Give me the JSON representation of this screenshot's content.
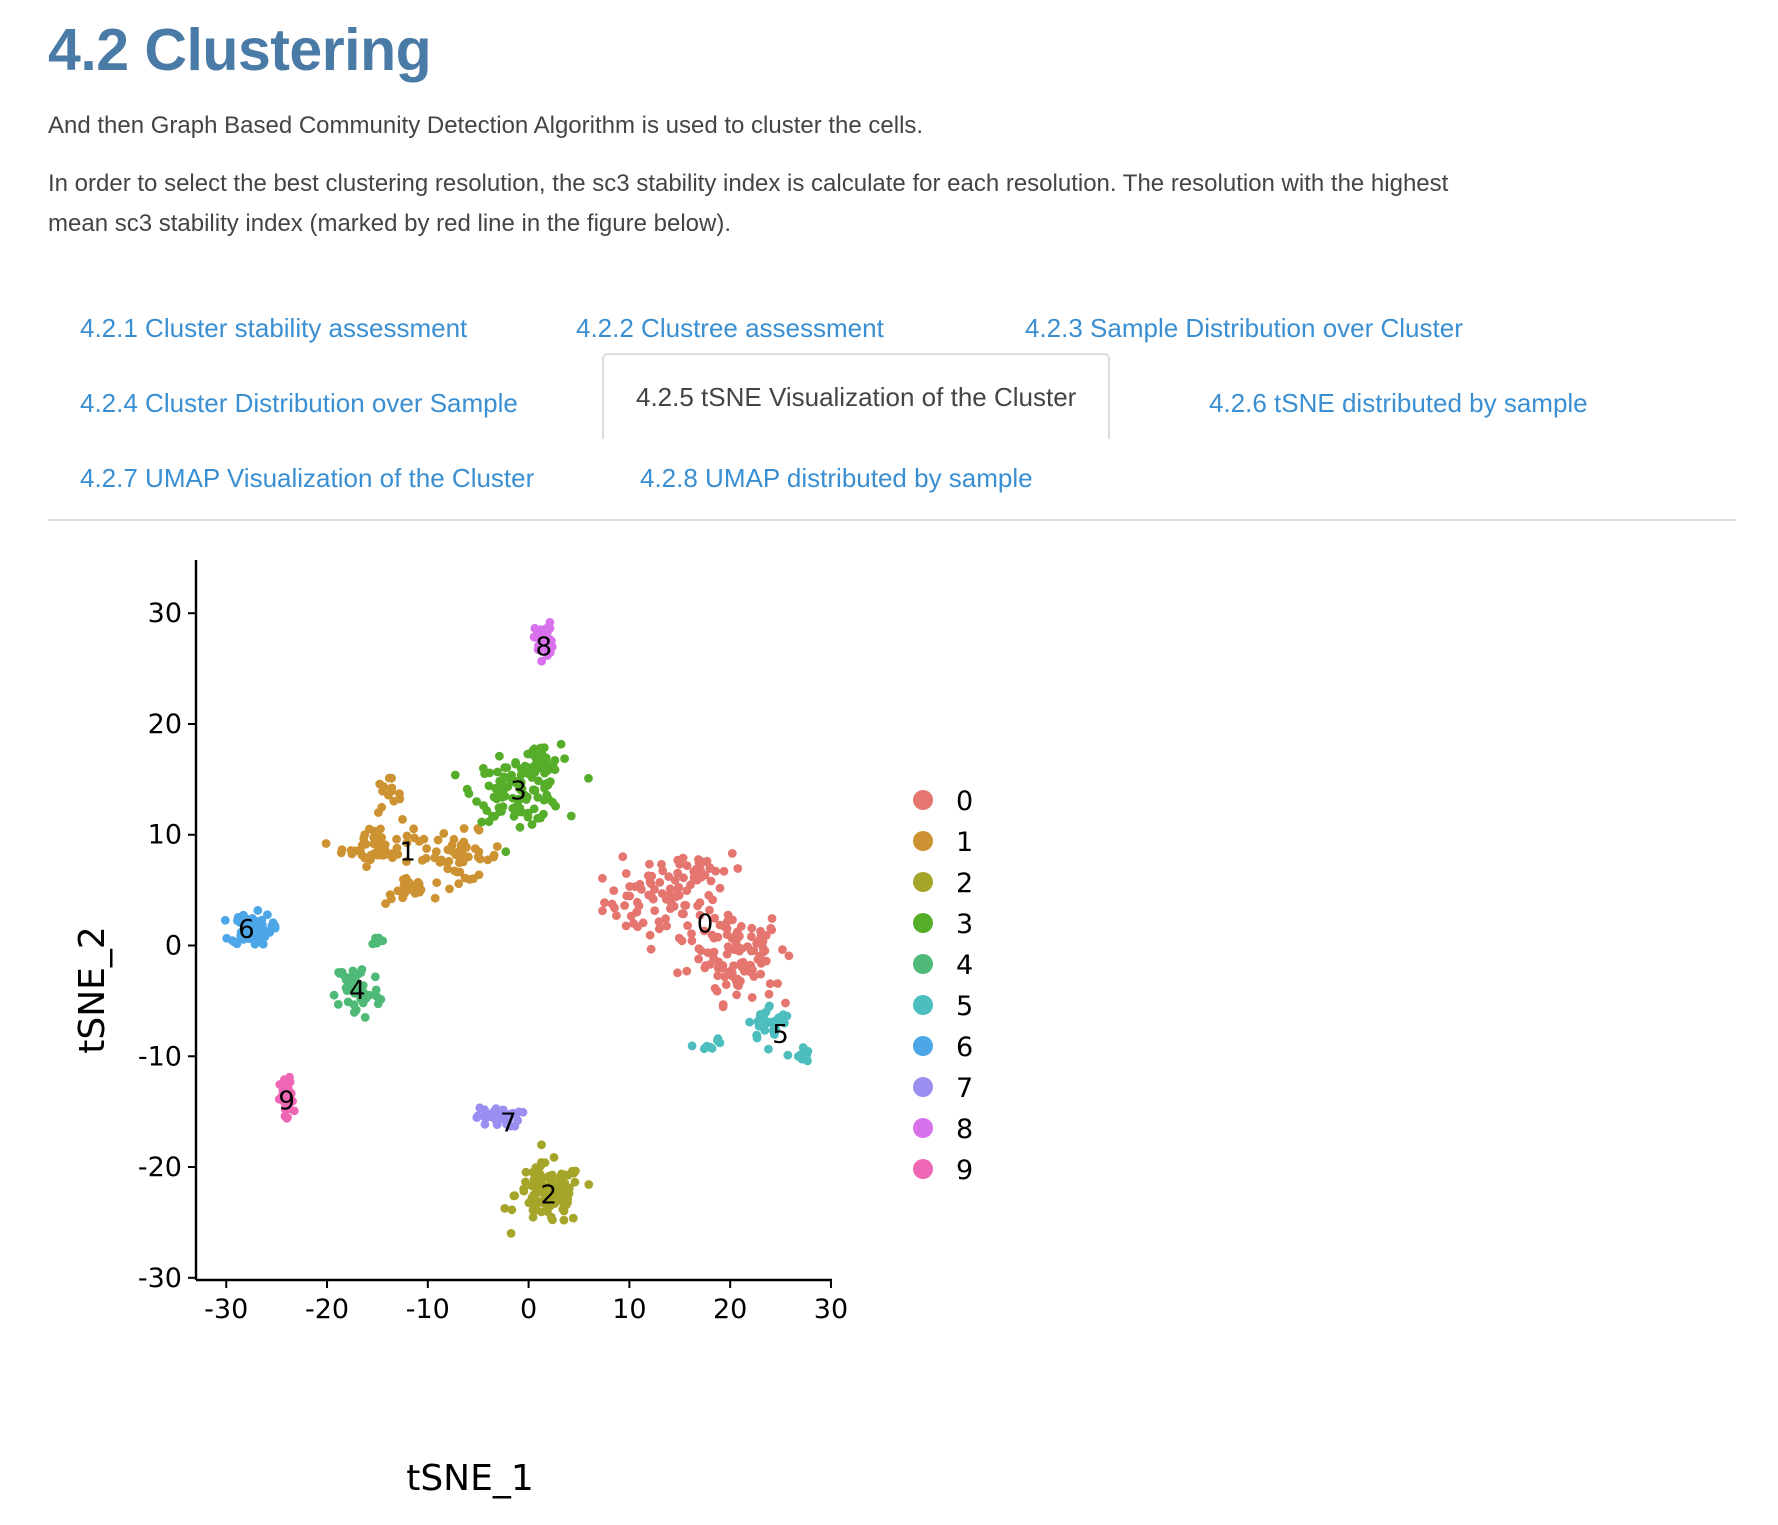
{
  "section": {
    "title": "4.2 Clustering",
    "para1": "And then Graph Based Community Detection Algorithm is used to cluster the cells.",
    "para2a": "In order to select the best clustering resolution, the sc3 stability index is calculate for each resolution. The resolution with the highest",
    "para2b": "mean sc3 stability index (marked by red line in the figure below)."
  },
  "tabs": [
    {
      "label": "4.2.1 Cluster stability assessment"
    },
    {
      "label": "4.2.2 Clustree assessment"
    },
    {
      "label": "4.2.3 Sample Distribution over Cluster"
    },
    {
      "label": "4.2.4 Cluster Distribution over Sample"
    },
    {
      "label": "4.2.5 tSNE Visualization of the Cluster",
      "active": true
    },
    {
      "label": "4.2.6 tSNE distributed by sample"
    },
    {
      "label": "4.2.7 UMAP Visualization of the Cluster"
    },
    {
      "label": "4.2.8 UMAP distributed by sample"
    }
  ],
  "colors": {
    "link": "#3a8fd2",
    "title": "#4a7aa6",
    "cluster_0": "#e5756f",
    "cluster_1": "#cd9231",
    "cluster_2": "#a5a52a",
    "cluster_3": "#56ad2a",
    "cluster_4": "#4fb978",
    "cluster_5": "#4dbebd",
    "cluster_6": "#4da6e8",
    "cluster_7": "#9a8ff0",
    "cluster_8": "#d872ec",
    "cluster_9": "#ee67b5"
  },
  "chart_data": {
    "type": "scatter",
    "xlabel": "tSNE_1",
    "ylabel": "tSNE_2",
    "xlim": [
      -33,
      30.5
    ],
    "ylim": [
      -30.2,
      33
    ],
    "xticks": [
      -30,
      -20,
      -10,
      0,
      10,
      20,
      30
    ],
    "yticks": [
      -30,
      -20,
      -10,
      0,
      10,
      20,
      30
    ],
    "xtick_labels": [
      "-30",
      "-20",
      "-10",
      "0",
      "10",
      "20",
      "30"
    ],
    "ytick_labels": [
      "-30",
      "-20",
      "-10",
      "0",
      "10",
      "20",
      "30"
    ],
    "grid": false,
    "legend_position": "right",
    "legend": [
      "0",
      "1",
      "2",
      "3",
      "4",
      "5",
      "6",
      "7",
      "8",
      "9"
    ],
    "clusters": [
      {
        "name": "0",
        "label_x": 17.5,
        "label_y": 2,
        "centers": [
          [
            13,
            4,
            5,
            3,
            70
          ],
          [
            20,
            0,
            5,
            3,
            80
          ],
          [
            17,
            7,
            4,
            1.6,
            30
          ],
          [
            21,
            -3,
            3,
            2,
            30
          ]
        ]
      },
      {
        "name": "1",
        "label_x": -12,
        "label_y": 8.5,
        "centers": [
          [
            -15,
            9,
            3.2,
            1.6,
            50
          ],
          [
            -7,
            8,
            4,
            2,
            50
          ],
          [
            -14,
            13.5,
            1.2,
            1.5,
            15
          ],
          [
            -12,
            5,
            2,
            1.2,
            20
          ]
        ]
      },
      {
        "name": "2",
        "label_x": 2,
        "label_y": -22.5,
        "centers": [
          [
            2,
            -22.5,
            3,
            2.5,
            110
          ]
        ]
      },
      {
        "name": "3",
        "label_x": -1,
        "label_y": 14,
        "centers": [
          [
            -1,
            14,
            4,
            2.5,
            110
          ],
          [
            1,
            16.5,
            2,
            1.5,
            30
          ]
        ]
      },
      {
        "name": "4",
        "label_x": -17,
        "label_y": -4,
        "centers": [
          [
            -17,
            -4,
            2,
            2.5,
            50
          ],
          [
            -15,
            0.5,
            0.6,
            0.4,
            6
          ]
        ]
      },
      {
        "name": "5",
        "label_x": 25,
        "label_y": -8,
        "centers": [
          [
            24,
            -7,
            2,
            1.5,
            30
          ],
          [
            27,
            -10,
            0.8,
            0.8,
            10
          ],
          [
            18,
            -8.8,
            1.5,
            0.8,
            8
          ]
        ]
      },
      {
        "name": "6",
        "label_x": -28,
        "label_y": 1.5,
        "centers": [
          [
            -27.5,
            1.5,
            1.8,
            1.3,
            70
          ]
        ]
      },
      {
        "name": "7",
        "label_x": -2,
        "label_y": -16,
        "centers": [
          [
            -3,
            -15.5,
            2,
            0.8,
            40
          ]
        ]
      },
      {
        "name": "8",
        "label_x": 1.5,
        "label_y": 27,
        "centers": [
          [
            1.5,
            27.5,
            0.8,
            1.5,
            40
          ]
        ]
      },
      {
        "name": "9",
        "label_x": -24,
        "label_y": -14,
        "centers": [
          [
            -24,
            -14,
            0.6,
            1.8,
            50
          ]
        ]
      }
    ]
  }
}
